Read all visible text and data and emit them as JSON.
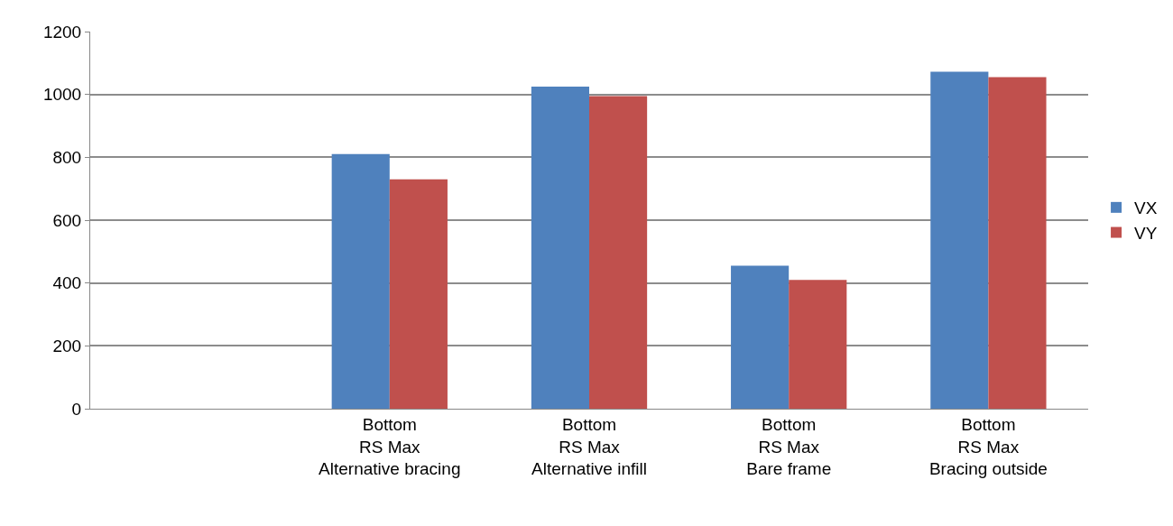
{
  "chart_data": {
    "type": "bar",
    "categories": [
      null,
      "Bottom\nRS Max\nAlternative bracing",
      "Bottom\nRS Max\nAlternative infill",
      "Bottom\nRS Max\nBare frame",
      "Bottom\nRS Max\nBracing outside"
    ],
    "series": [
      {
        "name": "VX",
        "color": "#4f81bd",
        "values": [
          null,
          810,
          1025,
          455,
          1072
        ]
      },
      {
        "name": "VY",
        "color": "#c0504d",
        "values": [
          null,
          730,
          995,
          410,
          1055
        ]
      }
    ],
    "ylim": [
      0,
      1200
    ],
    "yticks": [
      0,
      200,
      400,
      600,
      800,
      1000,
      1200
    ],
    "grid": "y",
    "legend": "right"
  }
}
